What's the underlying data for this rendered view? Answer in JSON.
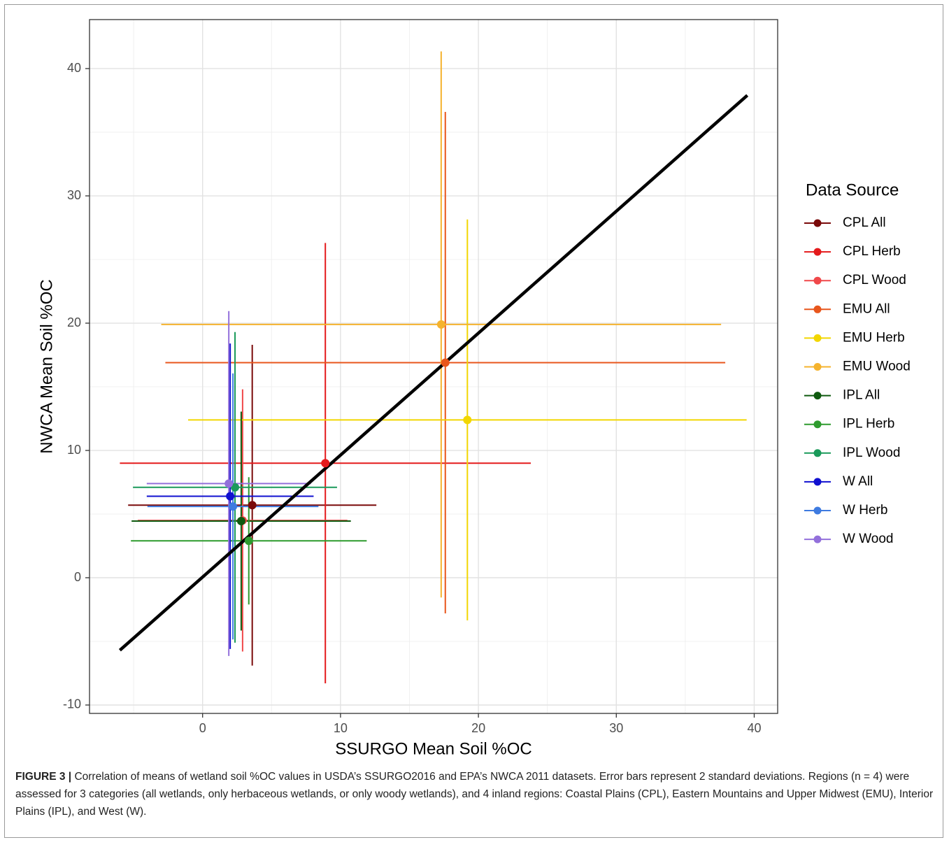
{
  "chart_data": {
    "type": "errorbar_scatter",
    "xlabel": "SSURGO Mean Soil %OC",
    "ylabel": "NWCA Mean Soil %OC",
    "legend_title": "Data Source",
    "legend": "right",
    "grid": true,
    "xlim": [
      -8.2,
      41.7
    ],
    "ylim": [
      -10.66,
      43.85
    ],
    "xticks": [
      0,
      10,
      20,
      30,
      40
    ],
    "yticks": [
      -10,
      0,
      10,
      20,
      30,
      40
    ],
    "minor_xticks": [
      -5,
      5,
      15,
      25,
      35
    ],
    "minor_yticks": [
      -5,
      5,
      15,
      25,
      35
    ],
    "fit_line": {
      "color": "#000000",
      "x": [
        -6.0,
        39.5
      ],
      "y": [
        -5.7,
        37.9
      ]
    },
    "series": [
      {
        "name": "CPL All",
        "color": "#7a0a0a",
        "x": 3.6,
        "y": 5.7,
        "xerr": 9.0,
        "yerr": 12.6
      },
      {
        "name": "CPL Herb",
        "color": "#e41a1c",
        "x": 8.9,
        "y": 9.0,
        "xerr": 14.9,
        "yerr": 17.3
      },
      {
        "name": "CPL Wood",
        "color": "#f0484a",
        "x": 2.9,
        "y": 4.5,
        "xerr": 7.6,
        "yerr": 10.3
      },
      {
        "name": "EMU All",
        "color": "#e8561c",
        "x": 17.6,
        "y": 16.9,
        "xerr": 20.3,
        "yerr": 19.7
      },
      {
        "name": "EMU Herb",
        "color": "#f2d600",
        "x": 19.2,
        "y": 12.4,
        "xerr": 20.25,
        "yerr": 15.75
      },
      {
        "name": "EMU Wood",
        "color": "#f5b32e",
        "x": 17.3,
        "y": 19.9,
        "xerr": 20.3,
        "yerr": 21.45
      },
      {
        "name": "IPL All",
        "color": "#0f5a0f",
        "x": 2.8,
        "y": 4.45,
        "xerr": 7.95,
        "yerr": 8.6
      },
      {
        "name": "IPL Herb",
        "color": "#2e9b2e",
        "x": 3.35,
        "y": 2.9,
        "xerr": 8.55,
        "yerr": 5.0
      },
      {
        "name": "IPL Wood",
        "color": "#1a9a5a",
        "x": 2.35,
        "y": 7.1,
        "xerr": 7.4,
        "yerr": 12.2
      },
      {
        "name": "W All",
        "color": "#1010d0",
        "x": 2.0,
        "y": 6.4,
        "xerr": 6.05,
        "yerr": 12.0
      },
      {
        "name": "W Herb",
        "color": "#3e7be0",
        "x": 2.2,
        "y": 5.6,
        "xerr": 6.2,
        "yerr": 10.45
      },
      {
        "name": "W Wood",
        "color": "#9370db",
        "x": 1.9,
        "y": 7.4,
        "xerr": 5.95,
        "yerr": 13.55
      }
    ]
  },
  "caption": {
    "label": "FIGURE 3 |",
    "text": "Correlation of means of wetland soil %OC values in USDA’s SSURGO2016 and EPA’s NWCA 2011 datasets. Error bars represent 2 standard deviations. Regions (n = 4) were assessed for 3 categories (all wetlands, only herbaceous wetlands, or only woody wetlands), and 4 inland regions: Coastal Plains (CPL), Eastern Mountains and Upper Midwest (EMU), Interior Plains (IPL), and West (W)."
  }
}
